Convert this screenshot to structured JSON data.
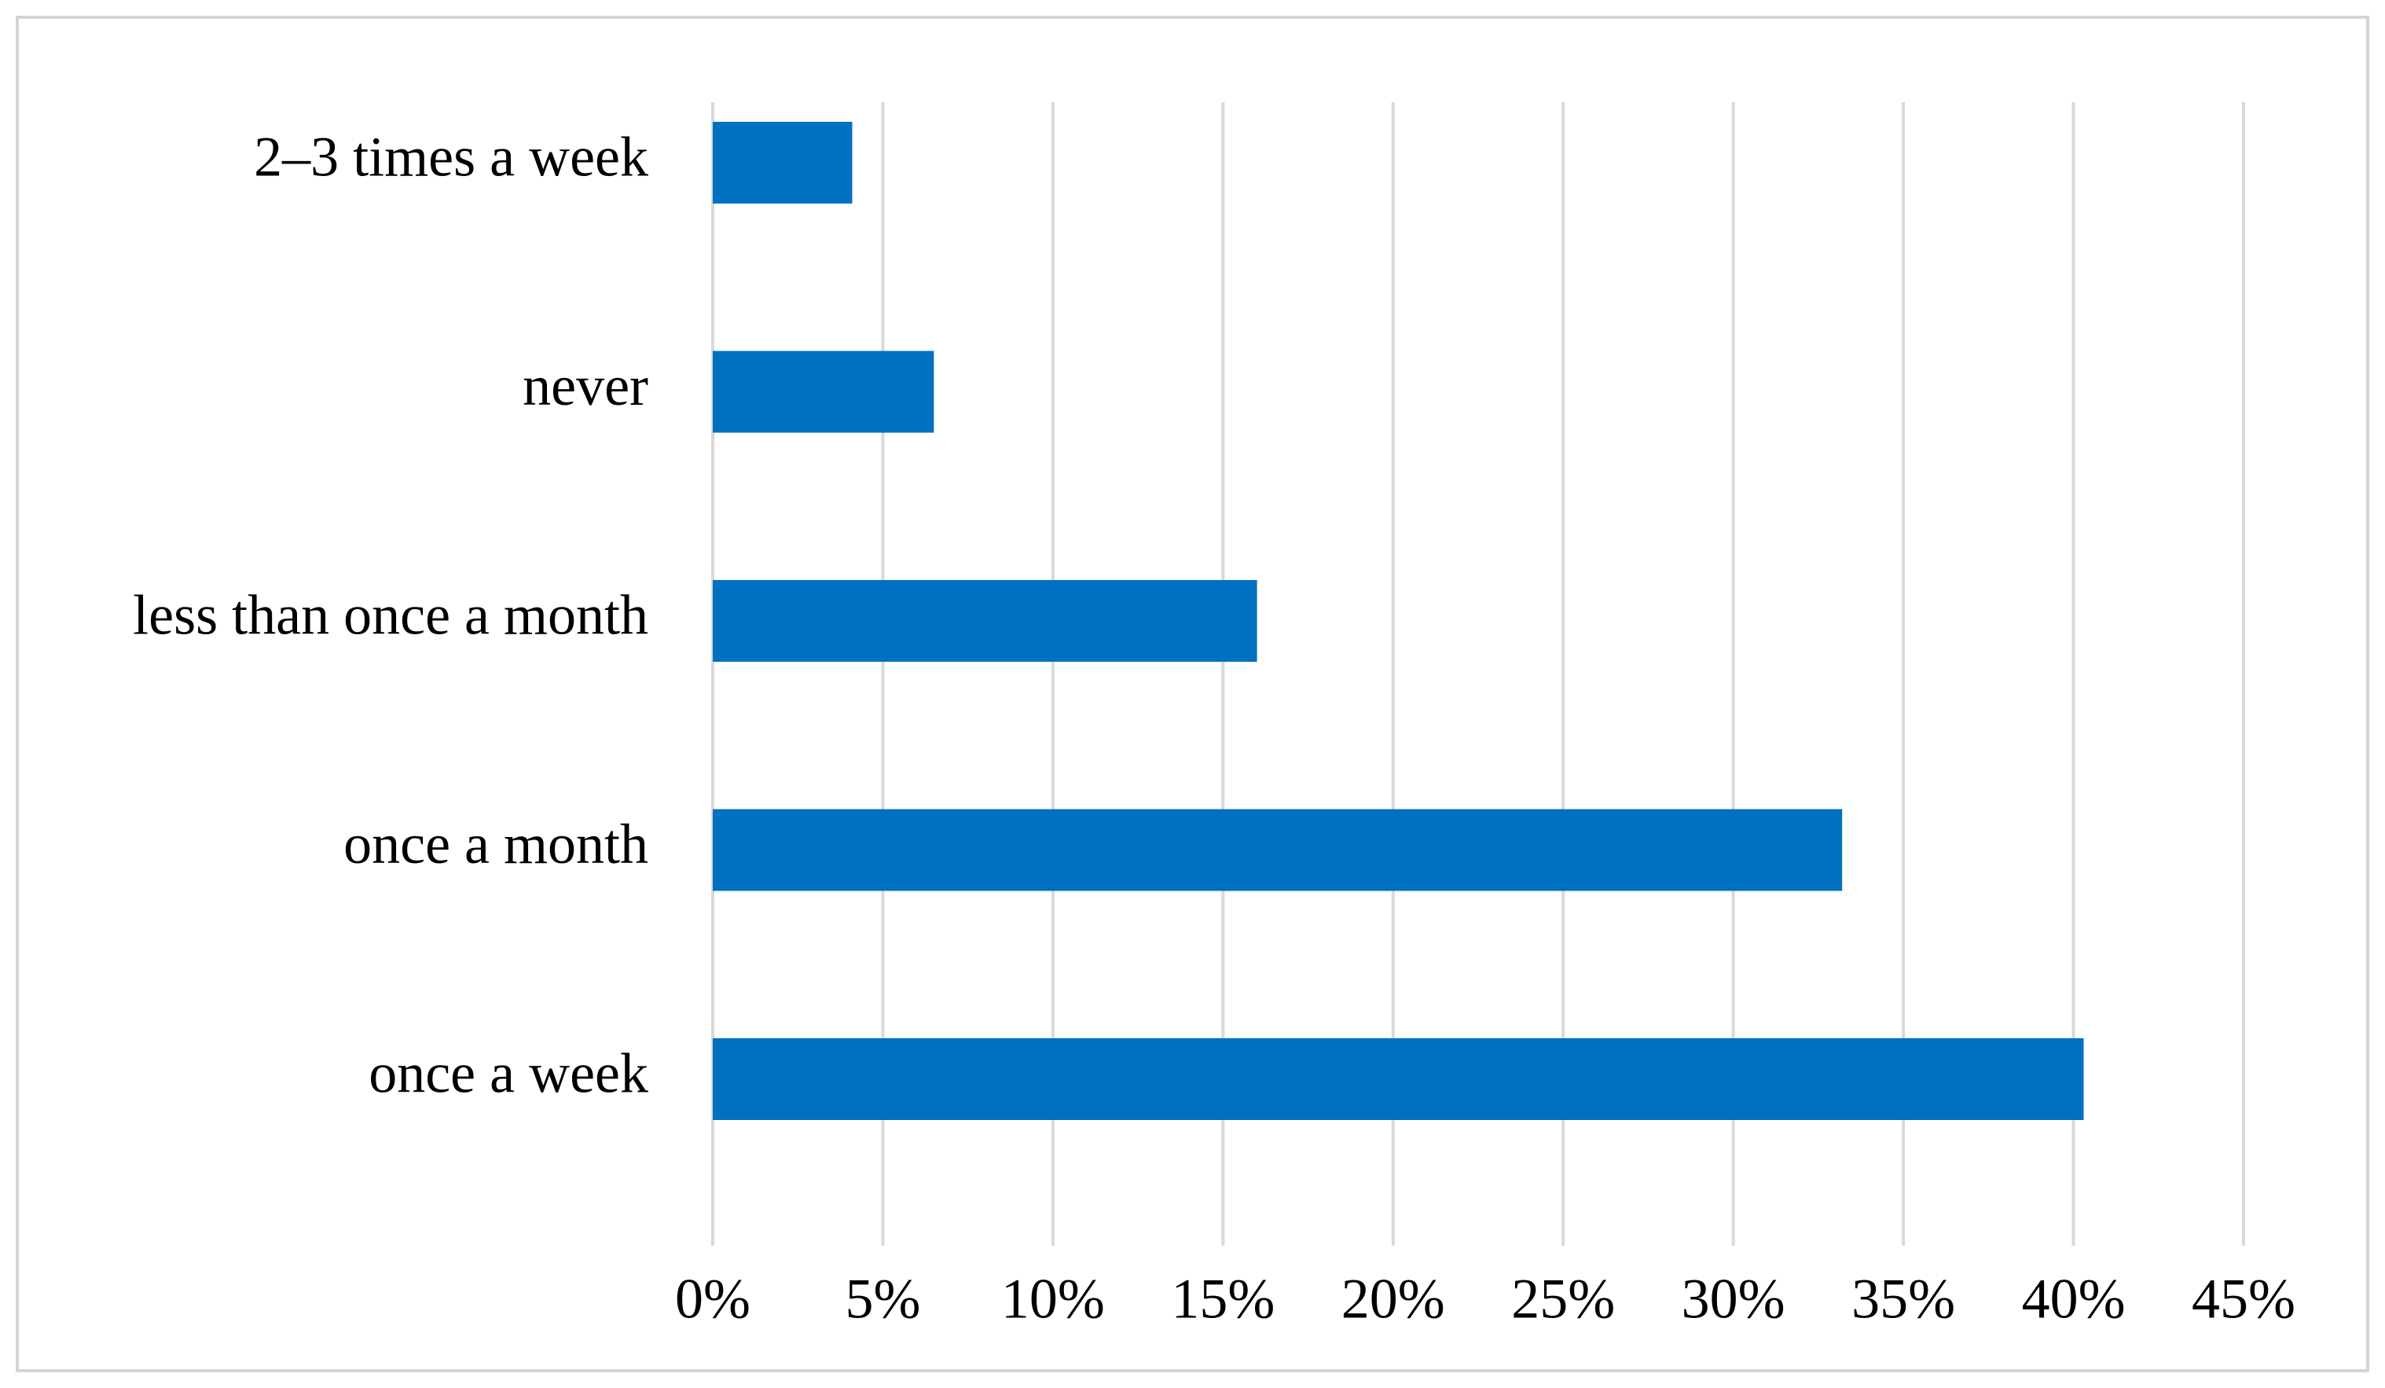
{
  "chart_data": {
    "type": "bar",
    "orientation": "horizontal",
    "title": "",
    "xlabel": "",
    "ylabel": "",
    "categories": [
      "2–3 times a week",
      "never",
      "less than once a month",
      "once a month",
      "once a week"
    ],
    "values": [
      4.1,
      6.5,
      16.0,
      33.2,
      40.3
    ],
    "xlim": [
      0,
      45
    ],
    "x_ticks": [
      0,
      5,
      10,
      15,
      20,
      25,
      30,
      35,
      40,
      45
    ],
    "x_tick_labels": [
      "0%",
      "5%",
      "10%",
      "15%",
      "20%",
      "25%",
      "30%",
      "35%",
      "40%",
      "45%"
    ],
    "grid": "vertical",
    "legend": "none",
    "bar_color": "#0070C0",
    "grid_color": "#D9D9D9"
  }
}
